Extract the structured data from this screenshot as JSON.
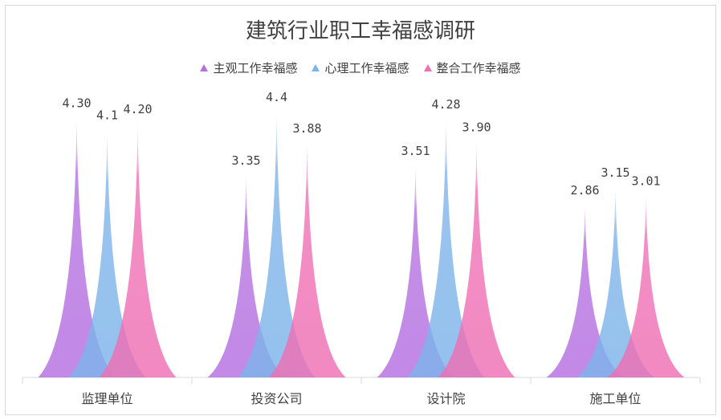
{
  "chart_data": {
    "type": "area",
    "title": "建筑行业职工幸福感调研",
    "categories": [
      "监理单位",
      "投资公司",
      "设计院",
      "施工单位"
    ],
    "series": [
      {
        "name": "主观工作幸福感",
        "values": [
          4.3,
          3.35,
          3.51,
          2.86
        ],
        "labels": [
          "4.30",
          "3.35",
          "3.51",
          "2.86"
        ],
        "color": "#b46fe0"
      },
      {
        "name": "心理工作幸福感",
        "values": [
          4.1,
          4.4,
          4.28,
          3.15
        ],
        "labels": [
          "4.1",
          "4.4",
          "4.28",
          "3.15"
        ],
        "color": "#7db3ea"
      },
      {
        "name": "整合工作幸福感",
        "values": [
          4.2,
          3.88,
          3.9,
          3.01
        ],
        "labels": [
          "4.20",
          "3.88",
          "3.90",
          "3.01"
        ],
        "color": "#ef6fb4"
      }
    ],
    "ylim": [
      0,
      5
    ],
    "grid": false,
    "legend": "top"
  }
}
